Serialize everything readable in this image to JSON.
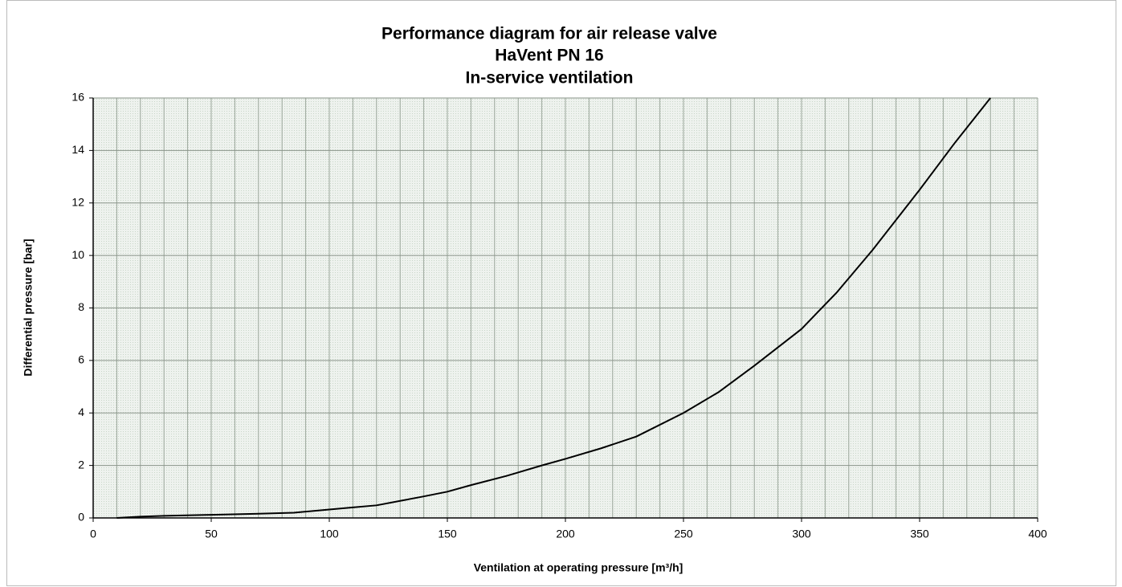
{
  "chart_data": {
    "type": "line",
    "title": [
      "Performance diagram for air release valve",
      "HaVent PN 16",
      "In-service ventilation"
    ],
    "xlabel": "Ventilation at operating pressure [m³/h]",
    "ylabel": "Differential pressure [bar]",
    "x": [
      10,
      20,
      30,
      50,
      70,
      85,
      100,
      110,
      120,
      130,
      140,
      150,
      160,
      175,
      190,
      200,
      215,
      230,
      250,
      265,
      280,
      300,
      315,
      330,
      350,
      365,
      380
    ],
    "series": [
      {
        "name": "HaVent PN 16",
        "color": "#000000",
        "values": [
          0,
          0.05,
          0.08,
          0.12,
          0.16,
          0.2,
          0.32,
          0.4,
          0.48,
          0.65,
          0.82,
          1.0,
          1.25,
          1.6,
          2.0,
          2.25,
          2.65,
          3.1,
          4.0,
          4.8,
          5.8,
          7.2,
          8.6,
          10.2,
          12.5,
          14.3,
          16
        ]
      }
    ],
    "xlim": [
      0,
      400
    ],
    "xticks": [
      0,
      50,
      100,
      150,
      200,
      250,
      300,
      350,
      400
    ],
    "minor_xticks": [
      10,
      20,
      30,
      40,
      60,
      70,
      80,
      90,
      110,
      120,
      130,
      140,
      160,
      170,
      180,
      190,
      210,
      220,
      230,
      240,
      260,
      270,
      280,
      290,
      310,
      320,
      330,
      340,
      360,
      370,
      380,
      390
    ],
    "ylim": [
      0,
      16
    ],
    "yticks": [
      0,
      2,
      4,
      6,
      8,
      10,
      12,
      14,
      16
    ],
    "grid": true
  }
}
